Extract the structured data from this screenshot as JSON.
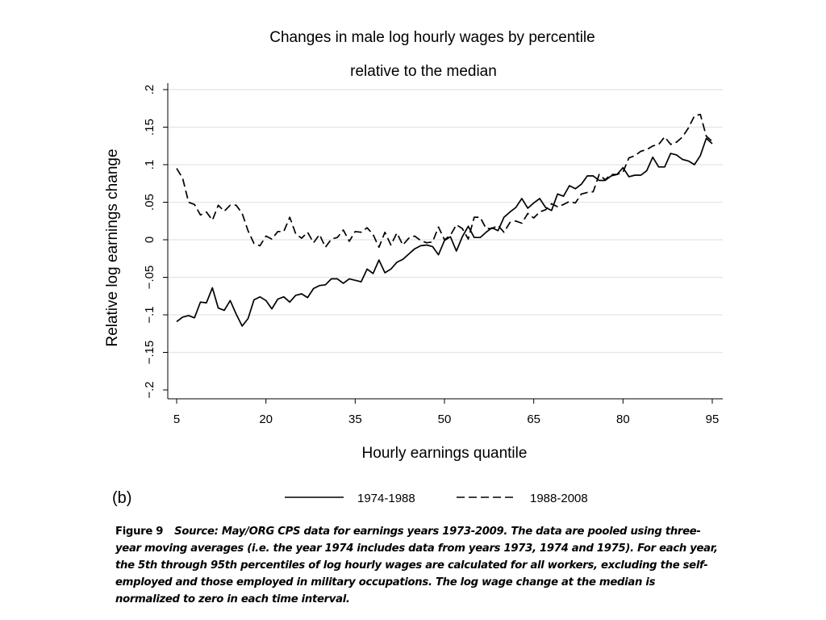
{
  "chart_data": {
    "type": "line",
    "title": "Changes in male log hourly wages by percentile",
    "subtitle": "relative to the median",
    "xlabel": "Hourly earnings quantile",
    "ylabel": "Relative log earnings change",
    "xlim": [
      4,
      96
    ],
    "ylim": [
      -0.2,
      0.2
    ],
    "xticks": [
      5,
      20,
      35,
      50,
      65,
      80,
      95
    ],
    "xtick_labels": [
      "5",
      "20",
      "35",
      "50",
      "65",
      "80",
      "95"
    ],
    "yticks": [
      -0.2,
      -0.15,
      -0.1,
      -0.05,
      0,
      0.05,
      0.1,
      0.15,
      0.2
    ],
    "ytick_labels": [
      "−.2",
      "−.15",
      "−.1",
      "−.05",
      "0",
      ".05",
      ".1",
      ".15",
      ".2"
    ],
    "grid": "horizontal",
    "legend_position": "bottom",
    "x": [
      5,
      6,
      7,
      8,
      9,
      10,
      11,
      12,
      13,
      14,
      15,
      16,
      17,
      18,
      19,
      20,
      21,
      22,
      23,
      24,
      25,
      26,
      27,
      28,
      29,
      30,
      31,
      32,
      33,
      34,
      35,
      36,
      37,
      38,
      39,
      40,
      41,
      42,
      43,
      44,
      45,
      46,
      47,
      48,
      49,
      50,
      51,
      52,
      53,
      54,
      55,
      56,
      57,
      58,
      59,
      60,
      61,
      62,
      63,
      64,
      65,
      66,
      67,
      68,
      69,
      70,
      71,
      72,
      73,
      74,
      75,
      76,
      77,
      78,
      79,
      80,
      81,
      82,
      83,
      84,
      85,
      86,
      87,
      88,
      89,
      90,
      91,
      92,
      93,
      94,
      95
    ],
    "series": [
      {
        "name": "1974-1988",
        "style": "solid",
        "values": [
          -0.109,
          -0.103,
          -0.101,
          -0.104,
          -0.083,
          -0.084,
          -0.064,
          -0.091,
          -0.094,
          -0.081,
          -0.099,
          -0.115,
          -0.105,
          -0.08,
          -0.076,
          -0.081,
          -0.092,
          -0.079,
          -0.076,
          -0.083,
          -0.074,
          -0.072,
          -0.077,
          -0.065,
          -0.061,
          -0.06,
          -0.052,
          -0.052,
          -0.058,
          -0.052,
          -0.054,
          -0.056,
          -0.039,
          -0.045,
          -0.027,
          -0.044,
          -0.039,
          -0.03,
          -0.026,
          -0.019,
          -0.012,
          -0.008,
          -0.007,
          -0.009,
          -0.02,
          -0.001,
          0.004,
          -0.015,
          0.004,
          0.018,
          0.003,
          0.003,
          0.01,
          0.016,
          0.012,
          0.03,
          0.037,
          0.043,
          0.055,
          0.042,
          0.049,
          0.055,
          0.043,
          0.039,
          0.061,
          0.058,
          0.072,
          0.068,
          0.074,
          0.085,
          0.085,
          0.079,
          0.079,
          0.085,
          0.087,
          0.096,
          0.084,
          0.086,
          0.086,
          0.092,
          0.11,
          0.097,
          0.097,
          0.115,
          0.113,
          0.107,
          0.105,
          0.1,
          0.112,
          0.135,
          0.128
        ]
      },
      {
        "name": "1988-2008",
        "style": "dashed",
        "values": [
          0.095,
          0.082,
          0.05,
          0.047,
          0.033,
          0.037,
          0.026,
          0.046,
          0.038,
          0.046,
          0.046,
          0.035,
          0.012,
          -0.005,
          -0.008,
          0.005,
          0.001,
          0.011,
          0.011,
          0.03,
          0.008,
          0.002,
          0.01,
          -0.004,
          0.007,
          -0.01,
          0.001,
          0.003,
          0.013,
          -0.002,
          0.011,
          0.01,
          0.016,
          0.007,
          -0.01,
          0.01,
          -0.007,
          0.009,
          -0.007,
          0.002,
          0.005,
          -0.001,
          -0.004,
          -0.003,
          0.017,
          0.0,
          0.006,
          0.02,
          0.015,
          0.001,
          0.03,
          0.03,
          0.015,
          0.015,
          0.019,
          0.01,
          0.023,
          0.025,
          0.022,
          0.035,
          0.029,
          0.037,
          0.04,
          0.048,
          0.044,
          0.047,
          0.051,
          0.049,
          0.061,
          0.063,
          0.064,
          0.087,
          0.08,
          0.087,
          0.087,
          0.09,
          0.109,
          0.112,
          0.118,
          0.12,
          0.125,
          0.127,
          0.137,
          0.127,
          0.13,
          0.137,
          0.149,
          0.165,
          0.167,
          0.138,
          0.131
        ]
      }
    ]
  },
  "panel_label": "(b)",
  "legend": {
    "items": [
      {
        "label": "1974-1988",
        "style": "solid"
      },
      {
        "label": "1988-2008",
        "style": "dashed"
      }
    ]
  },
  "caption": {
    "figure_label": "Figure 9",
    "text": "Source: May/ORG CPS data for earnings years 1973-2009. The data are pooled using three-year moving averages (i.e. the year 1974 includes data from years 1973, 1974 and 1975). For each year, the 5th through 95th percentiles of log hourly wages are calculated for all workers, excluding the self-employed and those employed in military occupations. The log wage change at the median is normalized to zero in each time interval."
  }
}
